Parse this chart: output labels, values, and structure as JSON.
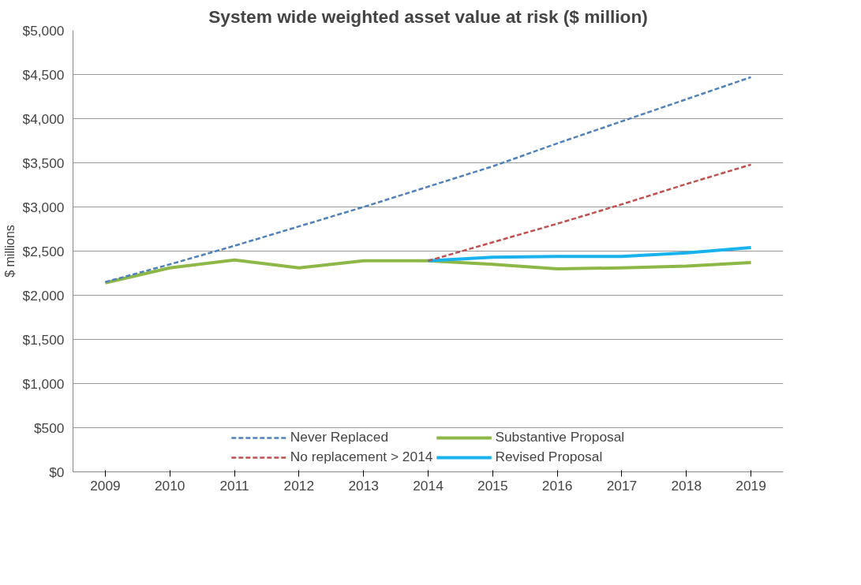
{
  "chart_data": {
    "type": "line",
    "title": "System wide weighted asset value at risk ($ million)",
    "ylabel": "$ millions",
    "categories": [
      "2009",
      "2010",
      "2011",
      "2012",
      "2013",
      "2014",
      "2015",
      "2016",
      "2017",
      "2018",
      "2019"
    ],
    "series": [
      {
        "name": "Never Replaced",
        "color": "#4f81bd",
        "line_style": "dashed",
        "values": [
          2150,
          2350,
          2560,
          2780,
          3000,
          3230,
          3460,
          3720,
          3970,
          4220,
          4470
        ]
      },
      {
        "name": "No replacement > 2014",
        "color": "#c0504d",
        "line_style": "dashed",
        "values": [
          null,
          null,
          null,
          null,
          null,
          2390,
          2600,
          2810,
          3030,
          3260,
          3480
        ]
      },
      {
        "name": "Substantive Proposal",
        "color": "#8db848",
        "line_style": "solid",
        "values": [
          2140,
          2310,
          2400,
          2310,
          2390,
          2390,
          2350,
          2300,
          2310,
          2330,
          2370
        ]
      },
      {
        "name": "Revised Proposal",
        "color": "#19b2ec",
        "line_style": "solid",
        "values": [
          null,
          null,
          null,
          null,
          null,
          2390,
          2430,
          2440,
          2440,
          2480,
          2540
        ]
      }
    ],
    "ylim": [
      0,
      5000
    ],
    "yticks": [
      {
        "value": 0,
        "label": "$0"
      },
      {
        "value": 500,
        "label": "$500"
      },
      {
        "value": 1000,
        "label": "$1,000"
      },
      {
        "value": 1500,
        "label": "$1,500"
      },
      {
        "value": 2000,
        "label": "$2,000"
      },
      {
        "value": 2500,
        "label": "$2,500"
      },
      {
        "value": 3000,
        "label": "$3,000"
      },
      {
        "value": 3500,
        "label": "$3,500"
      },
      {
        "value": 4000,
        "label": "$4,000"
      },
      {
        "value": 4500,
        "label": "$4,500"
      },
      {
        "value": 5000,
        "label": "$5,000"
      }
    ],
    "grid": "y",
    "legend": "bottom",
    "marker": "none"
  }
}
